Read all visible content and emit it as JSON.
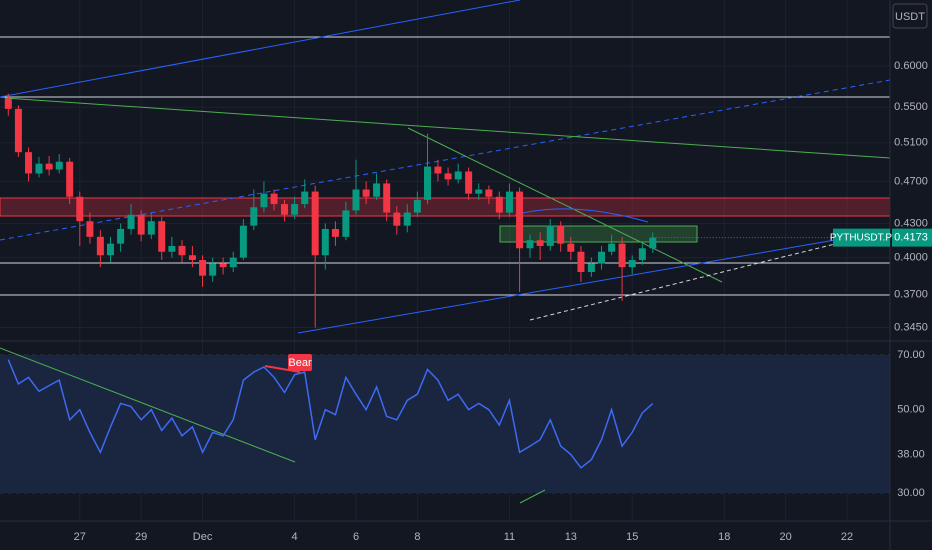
{
  "chart_data": [
    {
      "type": "candlestick",
      "currency": "USDT",
      "symbol": "PYTHUSDT.P",
      "up_color": "#089981",
      "down_color": "#f23645",
      "log_scale": true,
      "xlim": [
        -2.6,
        26.4
      ],
      "ylim": [
        0.336,
        0.69
      ],
      "yticks": [
        {
          "value": 0.6,
          "label": "0.6000"
        },
        {
          "value": 0.55,
          "label": "0.5500"
        },
        {
          "value": 0.51,
          "label": "0.5100"
        },
        {
          "value": 0.47,
          "label": "0.4700"
        },
        {
          "value": 0.43,
          "label": "0.4300"
        },
        {
          "value": 0.4,
          "label": "0.4000"
        },
        {
          "value": 0.37,
          "label": "0.3700"
        },
        {
          "value": 0.345,
          "label": "0.3450"
        }
      ],
      "x": [
        -2.33,
        -2,
        -1.67,
        -1.33,
        -1,
        -0.67,
        -0.33,
        0,
        0.33,
        0.67,
        1,
        1.33,
        1.67,
        2,
        2.33,
        2.67,
        3,
        3.33,
        3.67,
        4,
        4.33,
        4.67,
        5,
        5.33,
        5.67,
        6,
        6.33,
        6.67,
        7,
        7.33,
        7.67,
        8,
        8.33,
        8.67,
        9,
        9.33,
        9.67,
        10,
        10.33,
        10.67,
        11,
        11.33,
        11.67,
        12,
        12.33,
        12.67,
        13,
        13.33,
        13.67,
        14,
        14.33,
        14.67,
        15,
        15.33,
        15.67,
        16,
        16.33,
        16.67,
        17,
        17.33,
        17.67,
        18,
        18.33,
        18.67
      ],
      "ohlc": [
        [
          0.56,
          0.566,
          0.54,
          0.548
        ],
        [
          0.548,
          0.552,
          0.495,
          0.5
        ],
        [
          0.5,
          0.505,
          0.47,
          0.478
        ],
        [
          0.478,
          0.495,
          0.474,
          0.488
        ],
        [
          0.488,
          0.496,
          0.476,
          0.482
        ],
        [
          0.482,
          0.498,
          0.478,
          0.49
        ],
        [
          0.49,
          0.494,
          0.448,
          0.455
        ],
        [
          0.455,
          0.46,
          0.41,
          0.432
        ],
        [
          0.432,
          0.44,
          0.412,
          0.418
        ],
        [
          0.418,
          0.424,
          0.392,
          0.402
        ],
        [
          0.402,
          0.418,
          0.396,
          0.412
        ],
        [
          0.412,
          0.43,
          0.405,
          0.425
        ],
        [
          0.425,
          0.448,
          0.42,
          0.438
        ],
        [
          0.438,
          0.442,
          0.414,
          0.42
        ],
        [
          0.42,
          0.44,
          0.416,
          0.432
        ],
        [
          0.432,
          0.436,
          0.398,
          0.405
        ],
        [
          0.405,
          0.418,
          0.4,
          0.41
        ],
        [
          0.41,
          0.415,
          0.396,
          0.402
        ],
        [
          0.402,
          0.41,
          0.392,
          0.398
        ],
        [
          0.398,
          0.402,
          0.376,
          0.385
        ],
        [
          0.385,
          0.4,
          0.38,
          0.395
        ],
        [
          0.395,
          0.4,
          0.386,
          0.392
        ],
        [
          0.392,
          0.405,
          0.388,
          0.4
        ],
        [
          0.4,
          0.434,
          0.398,
          0.428
        ],
        [
          0.428,
          0.462,
          0.424,
          0.445
        ],
        [
          0.445,
          0.47,
          0.44,
          0.458
        ],
        [
          0.458,
          0.462,
          0.442,
          0.448
        ],
        [
          0.448,
          0.452,
          0.432,
          0.438
        ],
        [
          0.438,
          0.455,
          0.434,
          0.448
        ],
        [
          0.448,
          0.472,
          0.444,
          0.46
        ],
        [
          0.46,
          0.466,
          0.345,
          0.402
        ],
        [
          0.402,
          0.43,
          0.39,
          0.425
        ],
        [
          0.425,
          0.432,
          0.41,
          0.418
        ],
        [
          0.418,
          0.45,
          0.415,
          0.442
        ],
        [
          0.442,
          0.492,
          0.438,
          0.462
        ],
        [
          0.462,
          0.47,
          0.448,
          0.455
        ],
        [
          0.455,
          0.478,
          0.452,
          0.468
        ],
        [
          0.468,
          0.472,
          0.432,
          0.44
        ],
        [
          0.44,
          0.446,
          0.42,
          0.428
        ],
        [
          0.428,
          0.448,
          0.422,
          0.44
        ],
        [
          0.44,
          0.46,
          0.436,
          0.452
        ],
        [
          0.452,
          0.52,
          0.448,
          0.485
        ],
        [
          0.485,
          0.492,
          0.47,
          0.478
        ],
        [
          0.478,
          0.484,
          0.466,
          0.472
        ],
        [
          0.472,
          0.488,
          0.468,
          0.48
        ],
        [
          0.48,
          0.484,
          0.452,
          0.458
        ],
        [
          0.458,
          0.468,
          0.452,
          0.462
        ],
        [
          0.462,
          0.466,
          0.448,
          0.455
        ],
        [
          0.455,
          0.46,
          0.434,
          0.44
        ],
        [
          0.44,
          0.468,
          0.436,
          0.46
        ],
        [
          0.46,
          0.464,
          0.372,
          0.408
        ],
        [
          0.408,
          0.42,
          0.4,
          0.415
        ],
        [
          0.415,
          0.422,
          0.398,
          0.41
        ],
        [
          0.41,
          0.434,
          0.406,
          0.428
        ],
        [
          0.428,
          0.432,
          0.405,
          0.412
        ],
        [
          0.412,
          0.418,
          0.398,
          0.405
        ],
        [
          0.405,
          0.41,
          0.38,
          0.388
        ],
        [
          0.388,
          0.4,
          0.384,
          0.395
        ],
        [
          0.395,
          0.41,
          0.39,
          0.405
        ],
        [
          0.405,
          0.42,
          0.402,
          0.412
        ],
        [
          0.412,
          0.418,
          0.365,
          0.392
        ],
        [
          0.392,
          0.402,
          0.386,
          0.398
        ],
        [
          0.398,
          0.412,
          0.394,
          0.408
        ],
        [
          0.408,
          0.422,
          0.404,
          0.4173
        ]
      ]
    },
    {
      "type": "line",
      "color": "#3d6af2",
      "log_scale": true,
      "annotation": "Bear",
      "xlim": [
        -2.6,
        26.4
      ],
      "ylim": [
        25.4,
        75.8
      ],
      "yticks": [
        {
          "value": 70,
          "label": "70.00"
        },
        {
          "value": 50,
          "label": "50.00"
        },
        {
          "value": 38,
          "label": "38.00"
        },
        {
          "value": 30,
          "label": "30.00"
        }
      ],
      "xticks": [
        {
          "value": 0,
          "label": "27"
        },
        {
          "value": 2,
          "label": "29"
        },
        {
          "value": 4,
          "label": "Dec"
        },
        {
          "value": 7,
          "label": "4"
        },
        {
          "value": 9,
          "label": "6"
        },
        {
          "value": 11,
          "label": "8"
        },
        {
          "value": 14,
          "label": "11"
        },
        {
          "value": 16,
          "label": "13"
        },
        {
          "value": 18,
          "label": "15"
        },
        {
          "value": 21,
          "label": "18"
        },
        {
          "value": 23,
          "label": "20"
        },
        {
          "value": 25,
          "label": "22"
        }
      ],
      "x": [
        -2.33,
        -2,
        -1.67,
        -1.33,
        -1,
        -0.67,
        -0.33,
        0,
        0.33,
        0.67,
        1,
        1.33,
        1.67,
        2,
        2.33,
        2.67,
        3,
        3.33,
        3.67,
        4,
        4.33,
        4.67,
        5,
        5.33,
        5.67,
        6,
        6.33,
        6.67,
        7,
        7.33,
        7.67,
        8,
        8.33,
        8.67,
        9,
        9.33,
        9.67,
        10,
        10.33,
        10.67,
        11,
        11.33,
        11.67,
        12,
        12.33,
        12.67,
        13,
        13.33,
        13.67,
        14,
        14.33,
        14.67,
        15,
        15.33,
        15.67,
        16,
        16.33,
        16.67,
        17,
        17.33,
        17.67,
        18,
        18.33,
        18.67
      ],
      "values": [
        68,
        58.6,
        61,
        56,
        58,
        60,
        47,
        50,
        43.5,
        38.5,
        45,
        52,
        51,
        47,
        50,
        44,
        47.5,
        42.6,
        45,
        38.5,
        43.5,
        42.6,
        47,
        60,
        63,
        65,
        61,
        55.6,
        62,
        63,
        41.6,
        50,
        48.5,
        61,
        55,
        50,
        57.5,
        48,
        47,
        53,
        55,
        64,
        60,
        53,
        55,
        50,
        52,
        50,
        45.5,
        53,
        38.5,
        40,
        41.6,
        47,
        40,
        38,
        35,
        36.8,
        41.6,
        50,
        40,
        43.5,
        49,
        52
      ]
    }
  ]
}
